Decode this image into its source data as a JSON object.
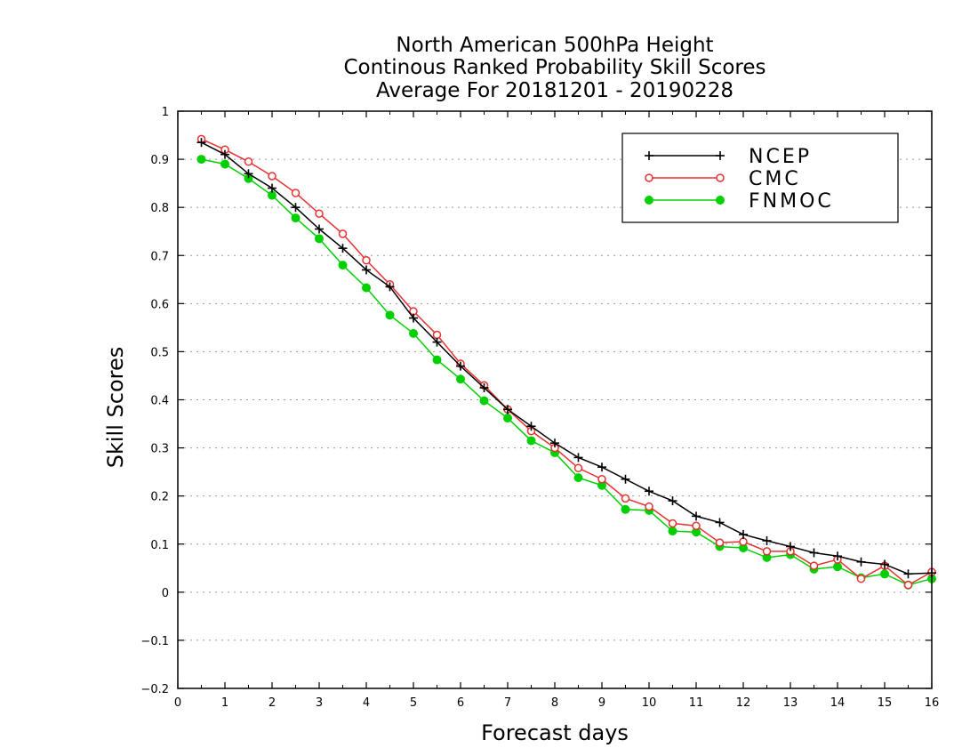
{
  "title_lines": [
    "North American 500hPa Height",
    "Continous Ranked Probability Skill Scores",
    "Average For 20181201 - 20190228"
  ],
  "chart_data": {
    "type": "line",
    "title": "North American 500hPa Height / Continous Ranked Probability Skill Scores / Average For 20181201 - 20190228",
    "xlabel": "Forecast days",
    "ylabel": "Skill Scores",
    "xlim": [
      0,
      16
    ],
    "ylim": [
      -0.2,
      1
    ],
    "xticks": [
      "0",
      "1",
      "2",
      "3",
      "4",
      "5",
      "6",
      "7",
      "8",
      "9",
      "10",
      "11",
      "12",
      "13",
      "14",
      "15",
      "16"
    ],
    "yticks": [
      "1",
      "0.9",
      "0.8",
      "0.7",
      "0.6",
      "0.5",
      "0.4",
      "0.3",
      "0.2",
      "0.1",
      "0",
      "−0.1",
      "−0.2"
    ],
    "ytick_values": [
      1,
      0.9,
      0.8,
      0.7,
      0.6,
      0.5,
      0.4,
      0.3,
      0.2,
      0.1,
      0,
      -0.1,
      -0.2
    ],
    "grid": "horizontal dotted",
    "legend_position": "top-right",
    "x": [
      0.5,
      1,
      1.5,
      2,
      2.5,
      3,
      3.5,
      4,
      4.5,
      5,
      5.5,
      6,
      6.5,
      7,
      7.5,
      8,
      8.5,
      9,
      9.5,
      10,
      10.5,
      11,
      11.5,
      12,
      12.5,
      13,
      13.5,
      14,
      14.5,
      15,
      15.5,
      16
    ],
    "series": [
      {
        "name": "NCEP",
        "color": "#000000",
        "marker": "plus",
        "values": [
          0.935,
          0.91,
          0.87,
          0.84,
          0.8,
          0.755,
          0.715,
          0.67,
          0.635,
          0.57,
          0.52,
          0.47,
          0.425,
          0.38,
          0.345,
          0.31,
          0.28,
          0.26,
          0.235,
          0.21,
          0.19,
          0.158,
          0.145,
          0.12,
          0.107,
          0.095,
          0.082,
          0.075,
          0.063,
          0.058,
          0.038,
          0.04
        ]
      },
      {
        "name": "CMC",
        "color": "#e83030",
        "marker": "open-circle",
        "values": [
          0.942,
          0.92,
          0.895,
          0.865,
          0.83,
          0.787,
          0.745,
          0.69,
          0.64,
          0.584,
          0.535,
          0.475,
          0.43,
          0.38,
          0.335,
          0.3,
          0.258,
          0.235,
          0.195,
          0.178,
          0.143,
          0.138,
          0.103,
          0.105,
          0.085,
          0.085,
          0.055,
          0.068,
          0.028,
          0.055,
          0.015,
          0.042
        ]
      },
      {
        "name": "FNMOC",
        "color": "#00d000",
        "marker": "filled-circle",
        "values": [
          0.9,
          0.89,
          0.86,
          0.825,
          0.778,
          0.735,
          0.68,
          0.633,
          0.576,
          0.538,
          0.483,
          0.443,
          0.398,
          0.362,
          0.315,
          0.29,
          0.238,
          0.222,
          0.172,
          0.17,
          0.127,
          0.125,
          0.095,
          0.092,
          0.072,
          0.078,
          0.048,
          0.053,
          0.03,
          0.038,
          0.015,
          0.028
        ]
      }
    ]
  }
}
